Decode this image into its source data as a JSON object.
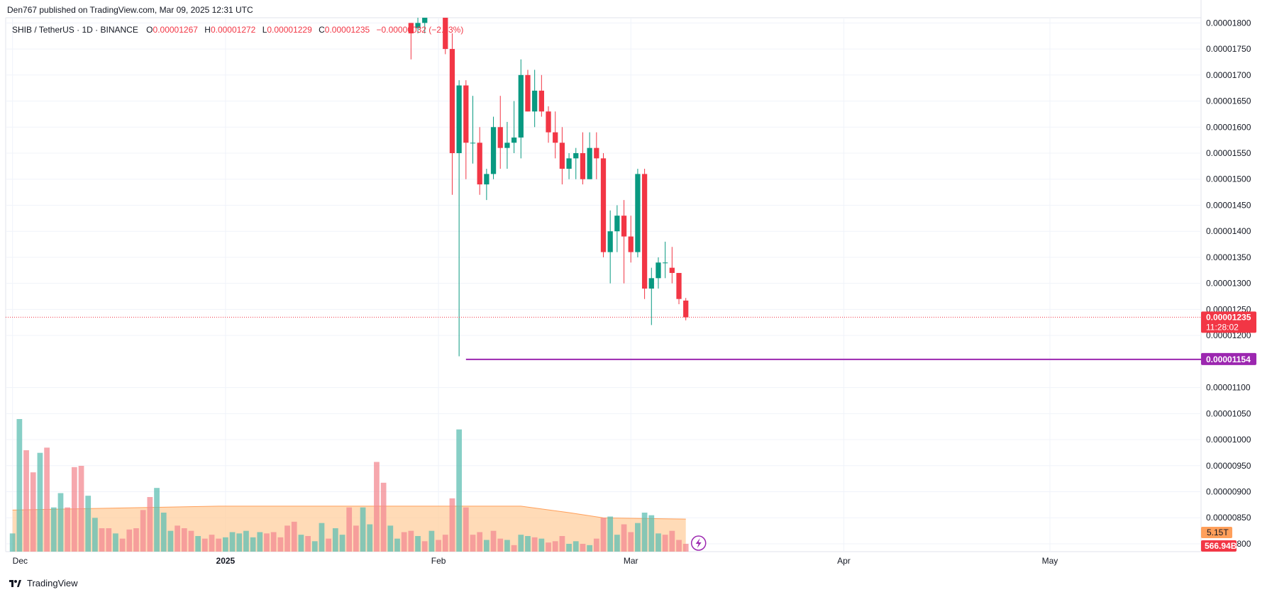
{
  "header": {
    "publisher": "Den767 published on TradingView.com, Mar 09, 2025 12:31 UTC"
  },
  "legend": {
    "symbol": "SHIB / TetherUS · 1D · BINANCE",
    "o_label": "O",
    "o_value": "0.00001267",
    "h_label": "H",
    "h_value": "0.00001272",
    "l_label": "L",
    "l_value": "0.00001229",
    "c_label": "C",
    "c_value": "0.00001235",
    "change": "−0.00000032 (−2.53%)"
  },
  "footer": {
    "brand": "TradingView"
  },
  "colors": {
    "up": "#089981",
    "down": "#f23645",
    "grid": "#f0f3fa",
    "hline": "#9c27b0",
    "vol_ma_fill": "#ffcc99",
    "axis_text": "#131722"
  },
  "chart_data": {
    "type": "candlestick",
    "y_axis": {
      "ticks": [
        "0.00001800",
        "0.00001750",
        "0.00001700",
        "0.00001650",
        "0.00001600",
        "0.00001550",
        "0.00001500",
        "0.00001450",
        "0.00001400",
        "0.00001350",
        "0.00001300",
        "0.00001250",
        "0.00001200",
        "0.00001100",
        "0.00001050",
        "0.00001000",
        "0.00000950",
        "0.00000900",
        "0.00000850",
        "0.00000800"
      ],
      "range": [
        7.85e-06,
        1.81e-05
      ],
      "position": "right"
    },
    "x_axis": {
      "labels": [
        "Dec",
        "2025",
        "Feb",
        "Mar",
        "Apr",
        "May"
      ],
      "label_dates": [
        "2024-12-01",
        "2025-01-01",
        "2025-02-01",
        "2025-03-01",
        "2025-04-01",
        "2025-05-01"
      ],
      "range": [
        "2024-11-30",
        "2025-05-23"
      ]
    },
    "current_price": {
      "value": "0.00001235",
      "countdown": "11:28:02"
    },
    "horizontal_line": {
      "value": "0.00001154"
    },
    "volume": {
      "ma_label": "5.15T",
      "last_label": "566.94B"
    },
    "candles": [
      {
        "date": "2025-01-28",
        "o": 1.8e-05,
        "h": 1.8e-05,
        "l": 1.73e-05,
        "c": 1.78e-05
      },
      {
        "date": "2025-01-29",
        "o": 1.79e-05,
        "h": 1.81e-05,
        "l": 1.78e-05,
        "c": 1.8e-05
      },
      {
        "date": "2025-01-30",
        "o": 1.8e-05,
        "h": 1.81e-05,
        "l": 1.78e-05,
        "c": 1.81e-05
      },
      {
        "date": "2025-02-02",
        "o": 1.81e-05,
        "h": 1.81e-05,
        "l": 1.74e-05,
        "c": 1.75e-05
      },
      {
        "date": "2025-02-03",
        "o": 1.75e-05,
        "h": 1.78e-05,
        "l": 1.47e-05,
        "c": 1.55e-05
      },
      {
        "date": "2025-02-04",
        "o": 1.55e-05,
        "h": 1.69e-05,
        "l": 1.16e-05,
        "c": 1.68e-05
      },
      {
        "date": "2025-02-05",
        "o": 1.68e-05,
        "h": 1.69e-05,
        "l": 1.5e-05,
        "c": 1.57e-05
      },
      {
        "date": "2025-02-06",
        "o": 1.57e-05,
        "h": 1.66e-05,
        "l": 1.53e-05,
        "c": 1.57e-05
      },
      {
        "date": "2025-02-07",
        "o": 1.57e-05,
        "h": 1.6e-05,
        "l": 1.47e-05,
        "c": 1.49e-05
      },
      {
        "date": "2025-02-08",
        "o": 1.49e-05,
        "h": 1.52e-05,
        "l": 1.46e-05,
        "c": 1.51e-05
      },
      {
        "date": "2025-02-09",
        "o": 1.51e-05,
        "h": 1.62e-05,
        "l": 1.5e-05,
        "c": 1.6e-05
      },
      {
        "date": "2025-02-10",
        "o": 1.6e-05,
        "h": 1.66e-05,
        "l": 1.52e-05,
        "c": 1.56e-05
      },
      {
        "date": "2025-02-11",
        "o": 1.56e-05,
        "h": 1.61e-05,
        "l": 1.52e-05,
        "c": 1.57e-05
      },
      {
        "date": "2025-02-12",
        "o": 1.57e-05,
        "h": 1.65e-05,
        "l": 1.55e-05,
        "c": 1.58e-05
      },
      {
        "date": "2025-02-13",
        "o": 1.58e-05,
        "h": 1.73e-05,
        "l": 1.54e-05,
        "c": 1.7e-05
      },
      {
        "date": "2025-02-14",
        "o": 1.7e-05,
        "h": 1.71e-05,
        "l": 1.63e-05,
        "c": 1.63e-05
      },
      {
        "date": "2025-02-15",
        "o": 1.63e-05,
        "h": 1.71e-05,
        "l": 1.6e-05,
        "c": 1.67e-05
      },
      {
        "date": "2025-02-16",
        "o": 1.67e-05,
        "h": 1.7e-05,
        "l": 1.62e-05,
        "c": 1.63e-05
      },
      {
        "date": "2025-02-17",
        "o": 1.63e-05,
        "h": 1.64e-05,
        "l": 1.57e-05,
        "c": 1.59e-05
      },
      {
        "date": "2025-02-18",
        "o": 1.59e-05,
        "h": 1.63e-05,
        "l": 1.54e-05,
        "c": 1.57e-05
      },
      {
        "date": "2025-02-19",
        "o": 1.57e-05,
        "h": 1.6e-05,
        "l": 1.49e-05,
        "c": 1.52e-05
      },
      {
        "date": "2025-02-20",
        "o": 1.52e-05,
        "h": 1.55e-05,
        "l": 1.5e-05,
        "c": 1.54e-05
      },
      {
        "date": "2025-02-21",
        "o": 1.54e-05,
        "h": 1.56e-05,
        "l": 1.5e-05,
        "c": 1.55e-05
      },
      {
        "date": "2025-02-22",
        "o": 1.55e-05,
        "h": 1.59e-05,
        "l": 1.49e-05,
        "c": 1.5e-05
      },
      {
        "date": "2025-02-23",
        "o": 1.5e-05,
        "h": 1.59e-05,
        "l": 1.5e-05,
        "c": 1.56e-05
      },
      {
        "date": "2025-02-24",
        "o": 1.56e-05,
        "h": 1.59e-05,
        "l": 1.5e-05,
        "c": 1.54e-05
      },
      {
        "date": "2025-02-25",
        "o": 1.54e-05,
        "h": 1.55e-05,
        "l": 1.35e-05,
        "c": 1.36e-05
      },
      {
        "date": "2025-02-26",
        "o": 1.36e-05,
        "h": 1.44e-05,
        "l": 1.3e-05,
        "c": 1.4e-05
      },
      {
        "date": "2025-02-27",
        "o": 1.4e-05,
        "h": 1.45e-05,
        "l": 1.36e-05,
        "c": 1.43e-05
      },
      {
        "date": "2025-02-28",
        "o": 1.43e-05,
        "h": 1.46e-05,
        "l": 1.3e-05,
        "c": 1.39e-05
      },
      {
        "date": "2025-03-01",
        "o": 1.39e-05,
        "h": 1.43e-05,
        "l": 1.34e-05,
        "c": 1.36e-05
      },
      {
        "date": "2025-03-02",
        "o": 1.36e-05,
        "h": 1.52e-05,
        "l": 1.35e-05,
        "c": 1.51e-05
      },
      {
        "date": "2025-03-03",
        "o": 1.51e-05,
        "h": 1.52e-05,
        "l": 1.27e-05,
        "c": 1.29e-05
      },
      {
        "date": "2025-03-04",
        "o": 1.29e-05,
        "h": 1.33e-05,
        "l": 1.22e-05,
        "c": 1.31e-05
      },
      {
        "date": "2025-03-05",
        "o": 1.31e-05,
        "h": 1.35e-05,
        "l": 1.29e-05,
        "c": 1.34e-05
      },
      {
        "date": "2025-03-06",
        "o": 1.34e-05,
        "h": 1.38e-05,
        "l": 1.31e-05,
        "c": 1.34e-05
      },
      {
        "date": "2025-03-07",
        "o": 1.33e-05,
        "h": 1.37e-05,
        "l": 1.3e-05,
        "c": 1.32e-05
      },
      {
        "date": "2025-03-08",
        "o": 1.32e-05,
        "h": 1.32e-05,
        "l": 1.26e-05,
        "c": 1.27e-05
      },
      {
        "date": "2025-03-09",
        "o": 1.267e-05,
        "h": 1.272e-05,
        "l": 1.229e-05,
        "c": 1.235e-05
      }
    ],
    "volume_bars": [
      {
        "date": "2024-12-01",
        "v": 1.4,
        "dir": "up"
      },
      {
        "date": "2024-12-02",
        "v": 10.2,
        "dir": "up"
      },
      {
        "date": "2024-12-03",
        "v": 7.8,
        "dir": "down"
      },
      {
        "date": "2024-12-04",
        "v": 6.1,
        "dir": "down"
      },
      {
        "date": "2024-12-05",
        "v": 7.6,
        "dir": "up"
      },
      {
        "date": "2024-12-06",
        "v": 8.0,
        "dir": "down"
      },
      {
        "date": "2024-12-07",
        "v": 3.4,
        "dir": "up"
      },
      {
        "date": "2024-12-08",
        "v": 4.5,
        "dir": "up"
      },
      {
        "date": "2024-12-09",
        "v": 3.4,
        "dir": "down"
      },
      {
        "date": "2024-12-10",
        "v": 6.5,
        "dir": "down"
      },
      {
        "date": "2024-12-11",
        "v": 6.6,
        "dir": "down"
      },
      {
        "date": "2024-12-12",
        "v": 4.3,
        "dir": "up"
      },
      {
        "date": "2024-12-13",
        "v": 2.6,
        "dir": "up"
      },
      {
        "date": "2024-12-14",
        "v": 1.8,
        "dir": "down"
      },
      {
        "date": "2024-12-15",
        "v": 1.8,
        "dir": "down"
      },
      {
        "date": "2024-12-16",
        "v": 1.4,
        "dir": "up"
      },
      {
        "date": "2024-12-17",
        "v": 1.0,
        "dir": "down"
      },
      {
        "date": "2024-12-18",
        "v": 1.7,
        "dir": "down"
      },
      {
        "date": "2024-12-19",
        "v": 1.8,
        "dir": "down"
      },
      {
        "date": "2024-12-20",
        "v": 3.2,
        "dir": "down"
      },
      {
        "date": "2024-12-21",
        "v": 4.2,
        "dir": "down"
      },
      {
        "date": "2024-12-22",
        "v": 4.9,
        "dir": "up"
      },
      {
        "date": "2024-12-23",
        "v": 3.0,
        "dir": "up"
      },
      {
        "date": "2024-12-24",
        "v": 1.6,
        "dir": "up"
      },
      {
        "date": "2024-12-25",
        "v": 2.0,
        "dir": "down"
      },
      {
        "date": "2024-12-26",
        "v": 1.8,
        "dir": "down"
      },
      {
        "date": "2024-12-27",
        "v": 1.6,
        "dir": "down"
      },
      {
        "date": "2024-12-28",
        "v": 1.2,
        "dir": "up"
      },
      {
        "date": "2024-12-29",
        "v": 1.0,
        "dir": "down"
      },
      {
        "date": "2024-12-30",
        "v": 1.3,
        "dir": "down"
      },
      {
        "date": "2024-12-31",
        "v": 1.0,
        "dir": "down"
      },
      {
        "date": "2025-01-01",
        "v": 1.1,
        "dir": "up"
      },
      {
        "date": "2025-01-02",
        "v": 1.5,
        "dir": "up"
      },
      {
        "date": "2025-01-03",
        "v": 1.4,
        "dir": "up"
      },
      {
        "date": "2025-01-04",
        "v": 1.6,
        "dir": "up"
      },
      {
        "date": "2025-01-05",
        "v": 1.1,
        "dir": "up"
      },
      {
        "date": "2025-01-06",
        "v": 1.5,
        "dir": "up"
      },
      {
        "date": "2025-01-07",
        "v": 1.4,
        "dir": "down"
      },
      {
        "date": "2025-01-08",
        "v": 1.5,
        "dir": "down"
      },
      {
        "date": "2025-01-09",
        "v": 1.1,
        "dir": "down"
      },
      {
        "date": "2025-01-10",
        "v": 2.0,
        "dir": "down"
      },
      {
        "date": "2025-01-11",
        "v": 2.3,
        "dir": "down"
      },
      {
        "date": "2025-01-12",
        "v": 1.3,
        "dir": "up"
      },
      {
        "date": "2025-01-13",
        "v": 1.2,
        "dir": "down"
      },
      {
        "date": "2025-01-14",
        "v": 0.8,
        "dir": "up"
      },
      {
        "date": "2025-01-15",
        "v": 2.2,
        "dir": "up"
      },
      {
        "date": "2025-01-16",
        "v": 1.0,
        "dir": "down"
      },
      {
        "date": "2025-01-17",
        "v": 1.8,
        "dir": "up"
      },
      {
        "date": "2025-01-18",
        "v": 1.3,
        "dir": "up"
      },
      {
        "date": "2025-01-19",
        "v": 3.4,
        "dir": "down"
      },
      {
        "date": "2025-01-20",
        "v": 2.0,
        "dir": "down"
      },
      {
        "date": "2025-01-21",
        "v": 3.4,
        "dir": "up"
      },
      {
        "date": "2025-01-22",
        "v": 2.1,
        "dir": "up"
      },
      {
        "date": "2025-01-23",
        "v": 6.9,
        "dir": "down"
      },
      {
        "date": "2025-01-24",
        "v": 5.3,
        "dir": "down"
      },
      {
        "date": "2025-01-25",
        "v": 2.0,
        "dir": "up"
      },
      {
        "date": "2025-01-26",
        "v": 1.0,
        "dir": "up"
      },
      {
        "date": "2025-01-27",
        "v": 1.5,
        "dir": "down"
      },
      {
        "date": "2025-01-28",
        "v": 1.6,
        "dir": "down"
      },
      {
        "date": "2025-01-29",
        "v": 1.2,
        "dir": "up"
      },
      {
        "date": "2025-01-30",
        "v": 0.8,
        "dir": "down"
      },
      {
        "date": "2025-01-31",
        "v": 1.6,
        "dir": "up"
      },
      {
        "date": "2025-02-01",
        "v": 0.9,
        "dir": "down"
      },
      {
        "date": "2025-02-02",
        "v": 1.3,
        "dir": "down"
      },
      {
        "date": "2025-02-03",
        "v": 4.1,
        "dir": "down"
      },
      {
        "date": "2025-02-04",
        "v": 9.4,
        "dir": "up"
      },
      {
        "date": "2025-02-05",
        "v": 3.4,
        "dir": "down"
      },
      {
        "date": "2025-02-06",
        "v": 1.3,
        "dir": "down"
      },
      {
        "date": "2025-02-07",
        "v": 1.5,
        "dir": "down"
      },
      {
        "date": "2025-02-08",
        "v": 0.9,
        "dir": "up"
      },
      {
        "date": "2025-02-09",
        "v": 1.6,
        "dir": "down"
      },
      {
        "date": "2025-02-10",
        "v": 1.0,
        "dir": "down"
      },
      {
        "date": "2025-02-11",
        "v": 0.9,
        "dir": "up"
      },
      {
        "date": "2025-02-12",
        "v": 0.5,
        "dir": "down"
      },
      {
        "date": "2025-02-13",
        "v": 1.3,
        "dir": "up"
      },
      {
        "date": "2025-02-14",
        "v": 1.2,
        "dir": "up"
      },
      {
        "date": "2025-02-15",
        "v": 1.1,
        "dir": "down"
      },
      {
        "date": "2025-02-16",
        "v": 1.0,
        "dir": "up"
      },
      {
        "date": "2025-02-17",
        "v": 0.7,
        "dir": "down"
      },
      {
        "date": "2025-02-18",
        "v": 0.8,
        "dir": "down"
      },
      {
        "date": "2025-02-19",
        "v": 1.2,
        "dir": "down"
      },
      {
        "date": "2025-02-20",
        "v": 0.6,
        "dir": "up"
      },
      {
        "date": "2025-02-21",
        "v": 0.8,
        "dir": "up"
      },
      {
        "date": "2025-02-22",
        "v": 0.6,
        "dir": "down"
      },
      {
        "date": "2025-02-23",
        "v": 0.5,
        "dir": "up"
      },
      {
        "date": "2025-02-24",
        "v": 1.0,
        "dir": "down"
      },
      {
        "date": "2025-02-25",
        "v": 2.6,
        "dir": "down"
      },
      {
        "date": "2025-02-26",
        "v": 2.7,
        "dir": "up"
      },
      {
        "date": "2025-02-27",
        "v": 1.3,
        "dir": "up"
      },
      {
        "date": "2025-02-28",
        "v": 2.1,
        "dir": "down"
      },
      {
        "date": "2025-03-01",
        "v": 1.5,
        "dir": "down"
      },
      {
        "date": "2025-03-02",
        "v": 2.2,
        "dir": "up"
      },
      {
        "date": "2025-03-03",
        "v": 3.0,
        "dir": "up"
      },
      {
        "date": "2025-03-04",
        "v": 2.8,
        "dir": "up"
      },
      {
        "date": "2025-03-05",
        "v": 1.4,
        "dir": "up"
      },
      {
        "date": "2025-03-06",
        "v": 1.3,
        "dir": "down"
      },
      {
        "date": "2025-03-07",
        "v": 1.6,
        "dir": "down"
      },
      {
        "date": "2025-03-08",
        "v": 0.9,
        "dir": "down"
      },
      {
        "date": "2025-03-09",
        "v": 0.6,
        "dir": "down"
      }
    ],
    "volume_ma": [
      {
        "date": "2024-12-01",
        "v": 3.2
      },
      {
        "date": "2024-12-31",
        "v": 3.5
      },
      {
        "date": "2025-02-13",
        "v": 3.5
      },
      {
        "date": "2025-02-20",
        "v": 3.0
      },
      {
        "date": "2025-02-25",
        "v": 2.6
      },
      {
        "date": "2025-03-09",
        "v": 2.5
      }
    ]
  }
}
